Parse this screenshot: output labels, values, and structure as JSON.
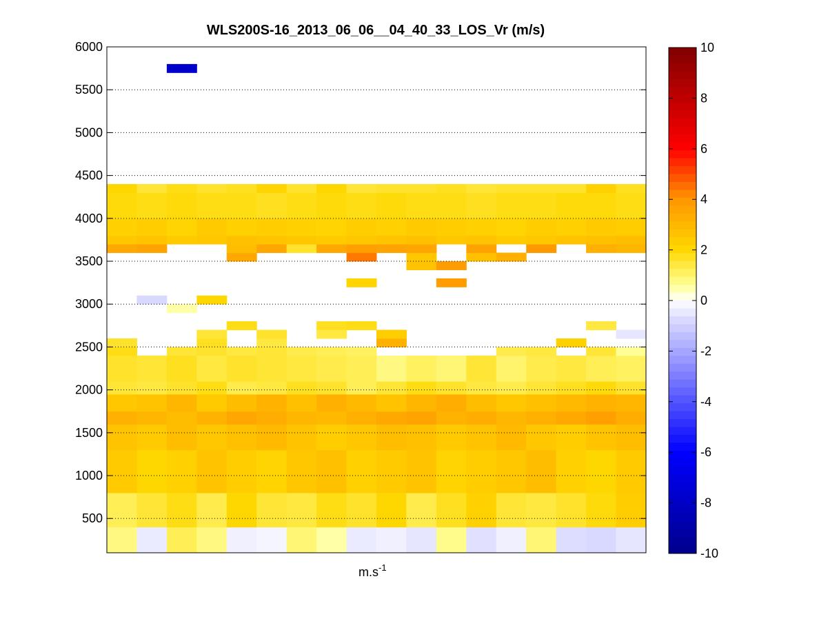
{
  "chart_data": {
    "type": "heatmap",
    "title": "WLS200S-16_2013_06_06__04_40_33_LOS_Vr (m/s)",
    "xlabel": "m.s",
    "xlabel_sup": "-1",
    "ylabel": "",
    "ylim": [
      100,
      6000
    ],
    "yticks": [
      500,
      1000,
      1500,
      2000,
      2500,
      3000,
      3500,
      4000,
      4500,
      5000,
      5500,
      6000
    ],
    "grid": true,
    "n_columns": 18,
    "colorbar": {
      "range": [
        -10,
        10
      ],
      "ticks": [
        10,
        8,
        6,
        4,
        2,
        0,
        -2,
        -4,
        -6,
        -8,
        -10
      ],
      "placement": "right",
      "colormap": "blue-white-yellow-red"
    },
    "bands": [
      {
        "y0": 100,
        "y1": 400,
        "values": [
          0.8,
          -0.4,
          1.2,
          0.8,
          -0.3,
          -0.2,
          0.9,
          0.5,
          -0.4,
          -0.3,
          -0.5,
          0.7,
          -0.6,
          -0.3,
          0.9,
          -0.7,
          -0.8,
          -0.5
        ]
      },
      {
        "y0": 400,
        "y1": 800,
        "values": [
          1.2,
          1.5,
          1.8,
          1.3,
          2.0,
          1.5,
          1.4,
          1.8,
          1.6,
          2.0,
          1.3,
          1.7,
          2.2,
          1.5,
          1.4,
          1.6,
          1.9,
          2.3
        ]
      },
      {
        "y0": 800,
        "y1": 1300,
        "values": [
          2.4,
          2.0,
          2.2,
          2.6,
          2.3,
          2.1,
          2.5,
          2.7,
          2.2,
          2.4,
          2.6,
          2.1,
          2.3,
          2.5,
          2.8,
          2.2,
          2.0,
          2.4
        ]
      },
      {
        "y0": 1300,
        "y1": 1600,
        "values": [
          2.6,
          2.4,
          2.8,
          2.5,
          2.7,
          2.9,
          2.6,
          2.3,
          2.5,
          2.8,
          2.7,
          2.4,
          2.6,
          2.9,
          2.5,
          2.3,
          2.6,
          2.8
        ]
      },
      {
        "y0": 1600,
        "y1": 1750,
        "values": [
          3.2,
          3.0,
          2.8,
          3.1,
          3.5,
          3.3,
          3.0,
          2.9,
          3.2,
          3.4,
          3.6,
          3.1,
          3.3,
          3.0,
          3.2,
          3.4,
          3.7,
          3.3
        ]
      },
      {
        "y0": 1750,
        "y1": 1950,
        "values": [
          2.5,
          2.6,
          3.0,
          2.4,
          2.8,
          3.1,
          2.7,
          3.2,
          2.9,
          2.6,
          3.0,
          3.3,
          2.8,
          2.5,
          2.7,
          2.9,
          3.1,
          3.0
        ]
      },
      {
        "y0": 1950,
        "y1": 2100,
        "values": [
          1.5,
          1.4,
          1.6,
          1.8,
          1.3,
          1.4,
          1.7,
          1.6,
          1.2,
          1.5,
          1.8,
          1.6,
          1.4,
          1.3,
          1.5,
          1.7,
          1.9,
          1.6
        ]
      },
      {
        "y0": 2100,
        "y1": 2400,
        "values": [
          1.6,
          1.5,
          1.7,
          1.4,
          1.6,
          1.5,
          1.4,
          1.3,
          1.2,
          0.8,
          1.1,
          0.9,
          1.5,
          1.0,
          1.3,
          1.4,
          1.2,
          1.1
        ]
      },
      {
        "y0": 2400,
        "y1": 2500,
        "values": [
          1.8,
          null,
          1.5,
          1.6,
          1.4,
          1.5,
          1.3,
          1.2,
          1.1,
          null,
          null,
          null,
          null,
          1.3,
          1.4,
          null,
          1.5,
          0.6
        ]
      },
      {
        "y0": 2500,
        "y1": 2600,
        "values": [
          1.6,
          null,
          null,
          1.7,
          null,
          1.4,
          null,
          null,
          null,
          3.2,
          null,
          null,
          null,
          null,
          null,
          2.2,
          null,
          null
        ]
      },
      {
        "y0": 2600,
        "y1": 2700,
        "values": [
          null,
          null,
          null,
          1.5,
          null,
          1.6,
          null,
          1.4,
          null,
          2.3,
          null,
          null,
          null,
          null,
          null,
          null,
          null,
          -0.5
        ]
      },
      {
        "y0": 2700,
        "y1": 2800,
        "values": [
          null,
          null,
          null,
          null,
          1.8,
          null,
          null,
          1.7,
          1.8,
          null,
          null,
          null,
          null,
          null,
          null,
          null,
          1.4,
          null
        ]
      },
      {
        "y0": 2900,
        "y1": 3000,
        "values": [
          null,
          null,
          0.5,
          null,
          null,
          null,
          null,
          null,
          null,
          null,
          null,
          null,
          null,
          null,
          null,
          null,
          null,
          null
        ]
      },
      {
        "y0": 3000,
        "y1": 3100,
        "values": [
          null,
          -0.8,
          null,
          2.0,
          null,
          null,
          null,
          null,
          null,
          null,
          null,
          null,
          null,
          null,
          null,
          null,
          null,
          null
        ]
      },
      {
        "y0": 3200,
        "y1": 3300,
        "values": [
          null,
          null,
          null,
          null,
          null,
          null,
          null,
          null,
          2.1,
          null,
          null,
          3.8,
          null,
          null,
          null,
          null,
          null,
          null
        ]
      },
      {
        "y0": 3400,
        "y1": 3500,
        "values": [
          null,
          null,
          null,
          null,
          null,
          null,
          null,
          null,
          null,
          null,
          2.6,
          3.8,
          null,
          null,
          null,
          null,
          null,
          null
        ]
      },
      {
        "y0": 3500,
        "y1": 3600,
        "values": [
          null,
          null,
          null,
          null,
          3.4,
          null,
          null,
          null,
          4.4,
          null,
          2.5,
          null,
          2.7,
          3.2,
          null,
          null,
          null,
          null
        ]
      },
      {
        "y0": 3600,
        "y1": 3700,
        "values": [
          3.4,
          3.6,
          null,
          null,
          2.8,
          3.5,
          1.6,
          3.4,
          3.7,
          3.6,
          3.5,
          null,
          3.6,
          null,
          3.9,
          null,
          3.2,
          3.0
        ]
      },
      {
        "y0": 3700,
        "y1": 3800,
        "values": [
          2.5,
          2.6,
          2.4,
          2.5,
          2.7,
          2.6,
          2.5,
          2.4,
          2.5,
          2.6,
          2.7,
          2.5,
          2.6,
          2.4,
          2.5,
          2.6,
          2.7,
          2.8
        ]
      },
      {
        "y0": 3800,
        "y1": 4000,
        "values": [
          2.2,
          2.3,
          2.1,
          2.4,
          2.2,
          2.3,
          2.2,
          2.1,
          2.3,
          2.2,
          2.4,
          2.3,
          2.2,
          2.1,
          2.3,
          2.2,
          2.4,
          2.3
        ]
      },
      {
        "y0": 4000,
        "y1": 4300,
        "values": [
          1.9,
          1.8,
          1.9,
          1.8,
          1.8,
          1.7,
          1.8,
          1.9,
          1.8,
          1.9,
          1.8,
          1.8,
          1.7,
          1.8,
          1.8,
          1.9,
          1.9,
          1.8
        ]
      },
      {
        "y0": 4300,
        "y1": 4400,
        "values": [
          2.0,
          1.5,
          1.8,
          1.6,
          1.7,
          2.1,
          1.6,
          2.0,
          1.5,
          1.6,
          1.6,
          1.7,
          1.5,
          1.6,
          1.6,
          1.6,
          2.2,
          1.7
        ]
      },
      {
        "y0": 5700,
        "y1": 5800,
        "values": [
          null,
          null,
          -7.8,
          null,
          null,
          null,
          null,
          null,
          null,
          null,
          null,
          null,
          null,
          null,
          null,
          null,
          null,
          null
        ]
      }
    ]
  }
}
